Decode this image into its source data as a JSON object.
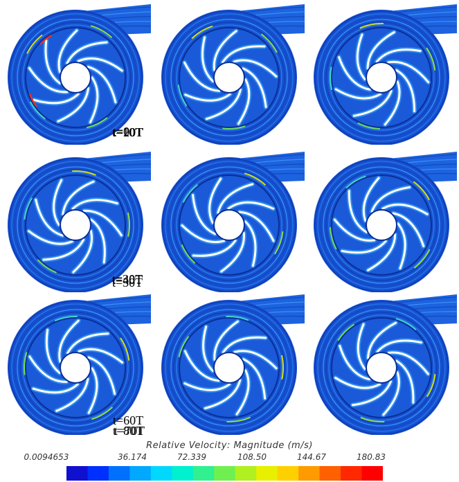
{
  "panels": [
    {
      "label": "t=0"
    },
    {
      "label": "t=10T"
    },
    {
      "label": "t=20T"
    },
    {
      "label": "t=30T"
    },
    {
      "label": "t=40T"
    },
    {
      "label": "t=50T"
    },
    {
      "label": "t=60T"
    },
    {
      "label": "t=70T"
    },
    {
      "label": "t=80T"
    }
  ],
  "legend": {
    "title": "Relative Velocity: Magnitude (m/s)",
    "ticks": [
      "0.0094653",
      "36.174",
      "72.339",
      "108.50",
      "144.67",
      "180.83"
    ],
    "colors": [
      "#1010d0",
      "#0030ff",
      "#0070ff",
      "#00a8ff",
      "#00d8ff",
      "#00f0d0",
      "#30f090",
      "#70f050",
      "#b0f020",
      "#e8f000",
      "#ffd000",
      "#ff9a00",
      "#ff6000",
      "#ff2800",
      "#ff0000"
    ]
  }
}
